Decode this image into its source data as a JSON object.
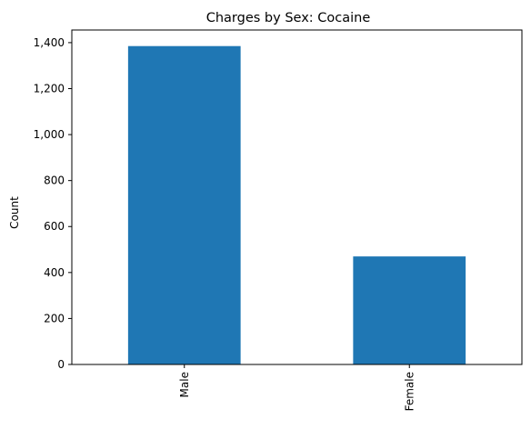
{
  "chart_data": {
    "type": "bar",
    "title": "Charges by Sex: Cocaine",
    "xlabel": "",
    "ylabel": "Count",
    "categories": [
      "Male",
      "Female"
    ],
    "values": [
      1385,
      470
    ],
    "ylim": [
      0,
      1455
    ],
    "yticks": [
      0,
      200,
      400,
      600,
      800,
      1000,
      1200,
      1400
    ],
    "ytick_labels": [
      "0",
      "200",
      "400",
      "600",
      "800",
      "1,000",
      "1,200",
      "1,400"
    ],
    "bar_color": "#1f77b4",
    "grid": false,
    "legend": "none"
  }
}
